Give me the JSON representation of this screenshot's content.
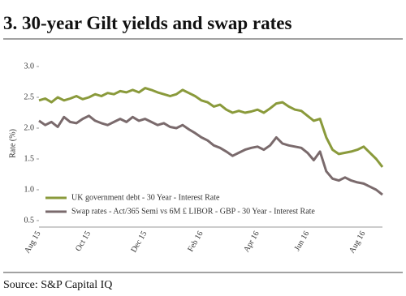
{
  "chart_data": {
    "type": "line",
    "title": "3. 30-year Gilt yields and swap rates",
    "source": "Source: S&P Capital IQ",
    "y_label": "Rate (%)",
    "categories": [
      "Aug 15",
      null,
      null,
      null,
      null,
      null,
      null,
      null,
      "Oct 15",
      null,
      null,
      null,
      null,
      null,
      null,
      null,
      null,
      "Dec 15",
      null,
      null,
      null,
      null,
      null,
      null,
      null,
      null,
      "Feb 16",
      null,
      null,
      null,
      null,
      null,
      null,
      null,
      null,
      "Apr 16",
      null,
      null,
      null,
      null,
      null,
      null,
      null,
      "Jun 16",
      null,
      null,
      null,
      null,
      null,
      null,
      null,
      null,
      "Aug 16",
      null,
      null,
      null
    ],
    "series": [
      {
        "name": "UK government debt - 30 Year - Interest Rate",
        "color": "#8a9a3b",
        "values": [
          2.45,
          2.48,
          2.42,
          2.5,
          2.45,
          2.48,
          2.52,
          2.47,
          2.5,
          2.55,
          2.52,
          2.57,
          2.55,
          2.6,
          2.58,
          2.62,
          2.58,
          2.65,
          2.62,
          2.58,
          2.55,
          2.52,
          2.55,
          2.62,
          2.57,
          2.52,
          2.45,
          2.42,
          2.35,
          2.38,
          2.3,
          2.25,
          2.28,
          2.25,
          2.27,
          2.3,
          2.25,
          2.32,
          2.4,
          2.42,
          2.35,
          2.3,
          2.28,
          2.2,
          2.12,
          2.15,
          1.85,
          1.65,
          1.58,
          1.6,
          1.62,
          1.65,
          1.7,
          1.6,
          1.5,
          1.37
        ]
      },
      {
        "name": "Swap rates - Act/365 Semi vs 6M £ LIBOR - GBP - 30 Year - Interest Rate",
        "color": "#7a6a6c",
        "values": [
          2.12,
          2.05,
          2.1,
          2.02,
          2.18,
          2.1,
          2.08,
          2.15,
          2.2,
          2.12,
          2.08,
          2.05,
          2.1,
          2.15,
          2.1,
          2.18,
          2.12,
          2.15,
          2.1,
          2.05,
          2.08,
          2.02,
          2.0,
          2.05,
          1.98,
          1.92,
          1.85,
          1.8,
          1.72,
          1.68,
          1.62,
          1.55,
          1.6,
          1.65,
          1.68,
          1.7,
          1.65,
          1.72,
          1.85,
          1.75,
          1.72,
          1.7,
          1.68,
          1.6,
          1.48,
          1.62,
          1.3,
          1.18,
          1.15,
          1.2,
          1.15,
          1.12,
          1.1,
          1.05,
          1.0,
          0.92
        ]
      }
    ],
    "ylim": [
      0.5,
      3.0
    ],
    "yticks": [
      0.5,
      {
        "value": 1,
        "label": "1.0"
      },
      1.5,
      {
        "value": 2,
        "label": "2.0"
      },
      2.5,
      {
        "value": 3,
        "label": "3.0"
      }
    ],
    "grid": false
  }
}
